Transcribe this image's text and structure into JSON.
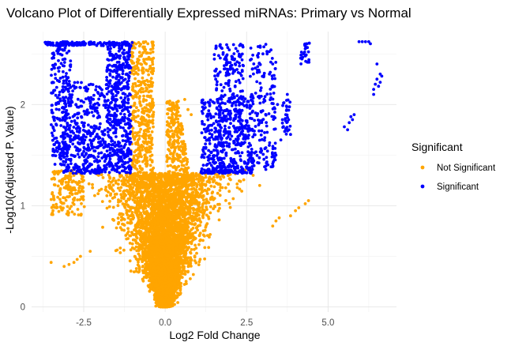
{
  "chart_data": {
    "type": "scatter",
    "title": "Volcano Plot of Differentially Expressed miRNAs: Primary vs Normal",
    "xlabel": "Log2 Fold Change",
    "ylabel": "-Log10(Adjusted P. Value)",
    "xlim": [
      -4.1,
      7.1
    ],
    "ylim": [
      -0.05,
      2.72
    ],
    "x_ticks": [
      -2.5,
      0.0,
      2.5,
      5.0
    ],
    "x_tick_labels": [
      "-2.5",
      "0.0",
      "2.5",
      "5.0"
    ],
    "y_ticks": [
      0,
      1,
      2
    ],
    "y_tick_labels": [
      "0",
      "1",
      "2"
    ],
    "grid": true,
    "legend_title": "Significant",
    "legend_position": "right",
    "series": [
      {
        "name": "Not Significant",
        "color": "#FFA500",
        "description_points": [
          [
            0.0,
            0.01
          ],
          [
            -0.3,
            0.2
          ],
          [
            0.3,
            0.2
          ],
          [
            -0.6,
            0.5
          ],
          [
            0.6,
            0.5
          ],
          [
            -0.9,
            0.8
          ],
          [
            0.9,
            0.8
          ],
          [
            -1.1,
            1.1
          ],
          [
            1.2,
            1.1
          ],
          [
            -1.5,
            1.25
          ],
          [
            1.6,
            1.2
          ],
          [
            -2.0,
            1.3
          ],
          [
            2.2,
            1.3
          ],
          [
            -0.8,
            2.6
          ],
          [
            -0.5,
            2.2
          ],
          [
            0.6,
            2.05
          ],
          [
            -2.6,
            0.5
          ],
          [
            -2.9,
            0.42
          ],
          [
            -3.0,
            0.4
          ],
          [
            -3.5,
            0.45
          ],
          [
            -0.5,
            0.4
          ],
          [
            -1.5,
            0.7
          ],
          [
            2.0,
            0.6
          ],
          [
            2.5,
            0.8
          ],
          [
            3.5,
            0.85
          ],
          [
            3.8,
            0.95
          ],
          [
            4.1,
            0.95
          ],
          [
            4.4,
            1.05
          ],
          [
            -3.0,
            1.3
          ],
          [
            -2.7,
            1.2
          ],
          [
            2.6,
            1.3
          ],
          [
            2.8,
            1.2
          ]
        ]
      },
      {
        "name": "Significant",
        "color": "#0000FF",
        "description_points": [
          [
            -3.6,
            2.62
          ],
          [
            -3.4,
            2.45
          ],
          [
            -3.2,
            2.2
          ],
          [
            -3.0,
            1.9
          ],
          [
            -2.9,
            1.6
          ],
          [
            -2.8,
            1.4
          ],
          [
            -2.5,
            1.35
          ],
          [
            -2.2,
            1.5
          ],
          [
            -2.0,
            1.7
          ],
          [
            -1.8,
            2.0
          ],
          [
            -1.6,
            2.3
          ],
          [
            -1.4,
            2.5
          ],
          [
            -1.2,
            2.2
          ],
          [
            -1.1,
            1.6
          ],
          [
            -1.05,
            1.35
          ],
          [
            -1.9,
            2.62
          ],
          [
            -1.5,
            2.62
          ],
          [
            -2.4,
            2.62
          ],
          [
            1.1,
            1.35
          ],
          [
            1.2,
            1.6
          ],
          [
            1.5,
            1.9
          ],
          [
            1.8,
            2.1
          ],
          [
            2.0,
            2.4
          ],
          [
            2.3,
            2.6
          ],
          [
            2.6,
            2.0
          ],
          [
            2.8,
            1.6
          ],
          [
            3.0,
            2.3
          ],
          [
            3.2,
            2.5
          ],
          [
            3.4,
            1.5
          ],
          [
            3.6,
            1.8
          ],
          [
            3.8,
            2.2
          ],
          [
            4.2,
            2.45
          ],
          [
            4.4,
            2.55
          ],
          [
            5.5,
            1.85
          ],
          [
            5.6,
            1.75
          ],
          [
            5.9,
            2.62
          ],
          [
            6.1,
            2.6
          ],
          [
            6.4,
            2.15
          ],
          [
            6.6,
            2.2
          ],
          [
            6.5,
            2.3
          ]
        ]
      }
    ]
  }
}
